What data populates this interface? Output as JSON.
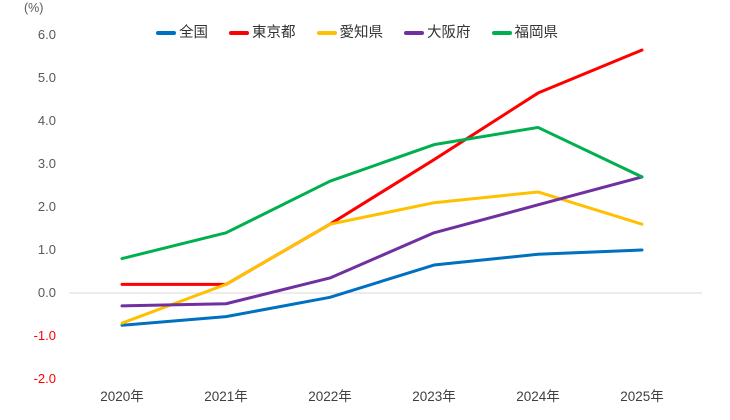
{
  "chart_data": {
    "type": "line",
    "title": "",
    "unit_label": "(%)",
    "xlabel": "",
    "ylabel": "(%)",
    "categories": [
      "2020年",
      "2021年",
      "2022年",
      "2023年",
      "2024年",
      "2025年"
    ],
    "series": [
      {
        "name": "全国",
        "slug": "zenkoku",
        "color": "#0070C0",
        "values": [
          -0.75,
          -0.55,
          -0.1,
          0.65,
          0.9,
          1.0
        ]
      },
      {
        "name": "東京都",
        "slug": "tokyo",
        "color": "#FF0000",
        "values": [
          0.2,
          0.2,
          1.6,
          3.1,
          4.65,
          5.65
        ]
      },
      {
        "name": "愛知県",
        "slug": "aichi",
        "color": "#FFC000",
        "values": [
          -0.7,
          0.2,
          1.6,
          2.1,
          2.35,
          1.6
        ]
      },
      {
        "name": "大阪府",
        "slug": "osaka",
        "color": "#7030A0",
        "values": [
          -0.3,
          -0.25,
          0.35,
          1.4,
          2.05,
          2.7
        ]
      },
      {
        "name": "福岡県",
        "slug": "fukuoka",
        "color": "#00B050",
        "values": [
          0.8,
          1.4,
          2.6,
          3.45,
          3.85,
          2.7
        ]
      }
    ],
    "y_ticks": [
      6.0,
      5.0,
      4.0,
      3.0,
      2.0,
      1.0,
      0.0,
      -1.0,
      -2.0
    ],
    "ylim": [
      -2.0,
      6.0
    ],
    "grid": "zero-line-only",
    "legend_position": "top",
    "colors": {
      "tick_label": "#595959",
      "negative_tick_label": "#FF0000",
      "x_tick_label": "#404040",
      "legend_text": "#333333",
      "zero_line": "#D9D9D9",
      "background": "#FFFFFF"
    }
  }
}
